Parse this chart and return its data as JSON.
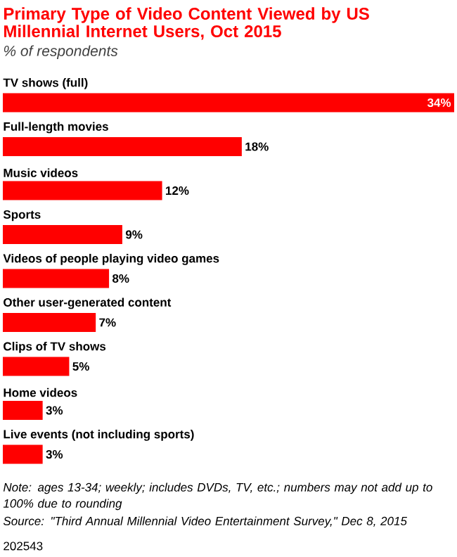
{
  "chart_data": {
    "type": "bar",
    "orientation": "horizontal",
    "title": "Primary Type of Video Content Viewed by US Millennial Internet Users, Oct 2015",
    "subtitle": "% of respondents",
    "categories": [
      "TV shows (full)",
      "Full-length movies",
      "Music videos",
      "Sports",
      "Videos of people playing video games",
      "Other user-generated content",
      "Clips of TV shows",
      "Home videos",
      "Live events (not including sports)"
    ],
    "values": [
      34,
      18,
      12,
      9,
      8,
      7,
      5,
      3,
      3
    ],
    "value_labels": [
      "34%",
      "18%",
      "12%",
      "9%",
      "8%",
      "7%",
      "5%",
      "3%",
      "3%"
    ],
    "color": "#ff0000",
    "annotations": [
      "Note: ages 13-34; weekly; includes DVDs, TV, etc.; numbers may not add up to 100% due to rounding",
      "Source: \"Third Annual Millennial Video Entertainment Survey,\" Dec 8, 2015",
      "202543"
    ]
  }
}
